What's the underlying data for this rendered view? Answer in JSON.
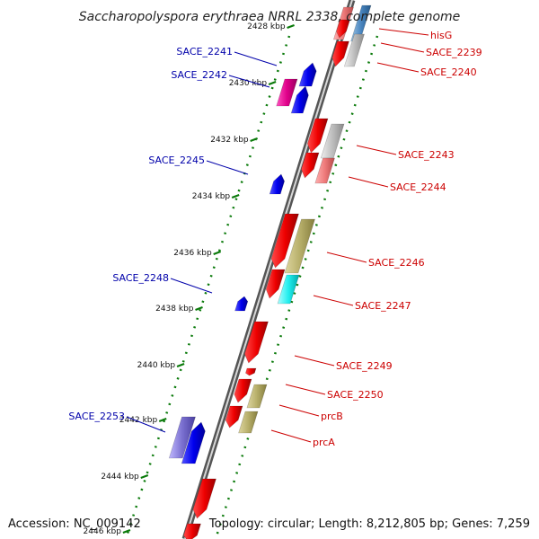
{
  "title": "Saccharopolyspora erythraea NRRL 2338, complete genome",
  "accession": "Accession: NC_009142",
  "topology": "Topology: circular; Length: 8,212,805 bp; Genes: 7,259",
  "ticks": [
    "2428 kbp",
    "2430 kbp",
    "2432 kbp",
    "2434 kbp",
    "2436 kbp",
    "2438 kbp",
    "2440 kbp",
    "2442 kbp",
    "2444 kbp",
    "2446 kbp"
  ],
  "labels_left": [
    "SACE_2241",
    "SACE_2242",
    "SACE_2245",
    "SACE_2248",
    "SACE_2253"
  ],
  "labels_right": [
    "hisG",
    "SACE_2239",
    "SACE_2240",
    "SACE_2243",
    "SACE_2244",
    "SACE_2246",
    "SACE_2247",
    "SACE_2249",
    "SACE_2250",
    "prcB",
    "prcA"
  ],
  "colors": {
    "backbone": "#8a8a8a",
    "reverse_gene": "#0000ee",
    "forward_gene": "#ee0000",
    "label_left": "#0000aa",
    "label_right": "#cc0000",
    "dots": "#0a7a0a"
  }
}
